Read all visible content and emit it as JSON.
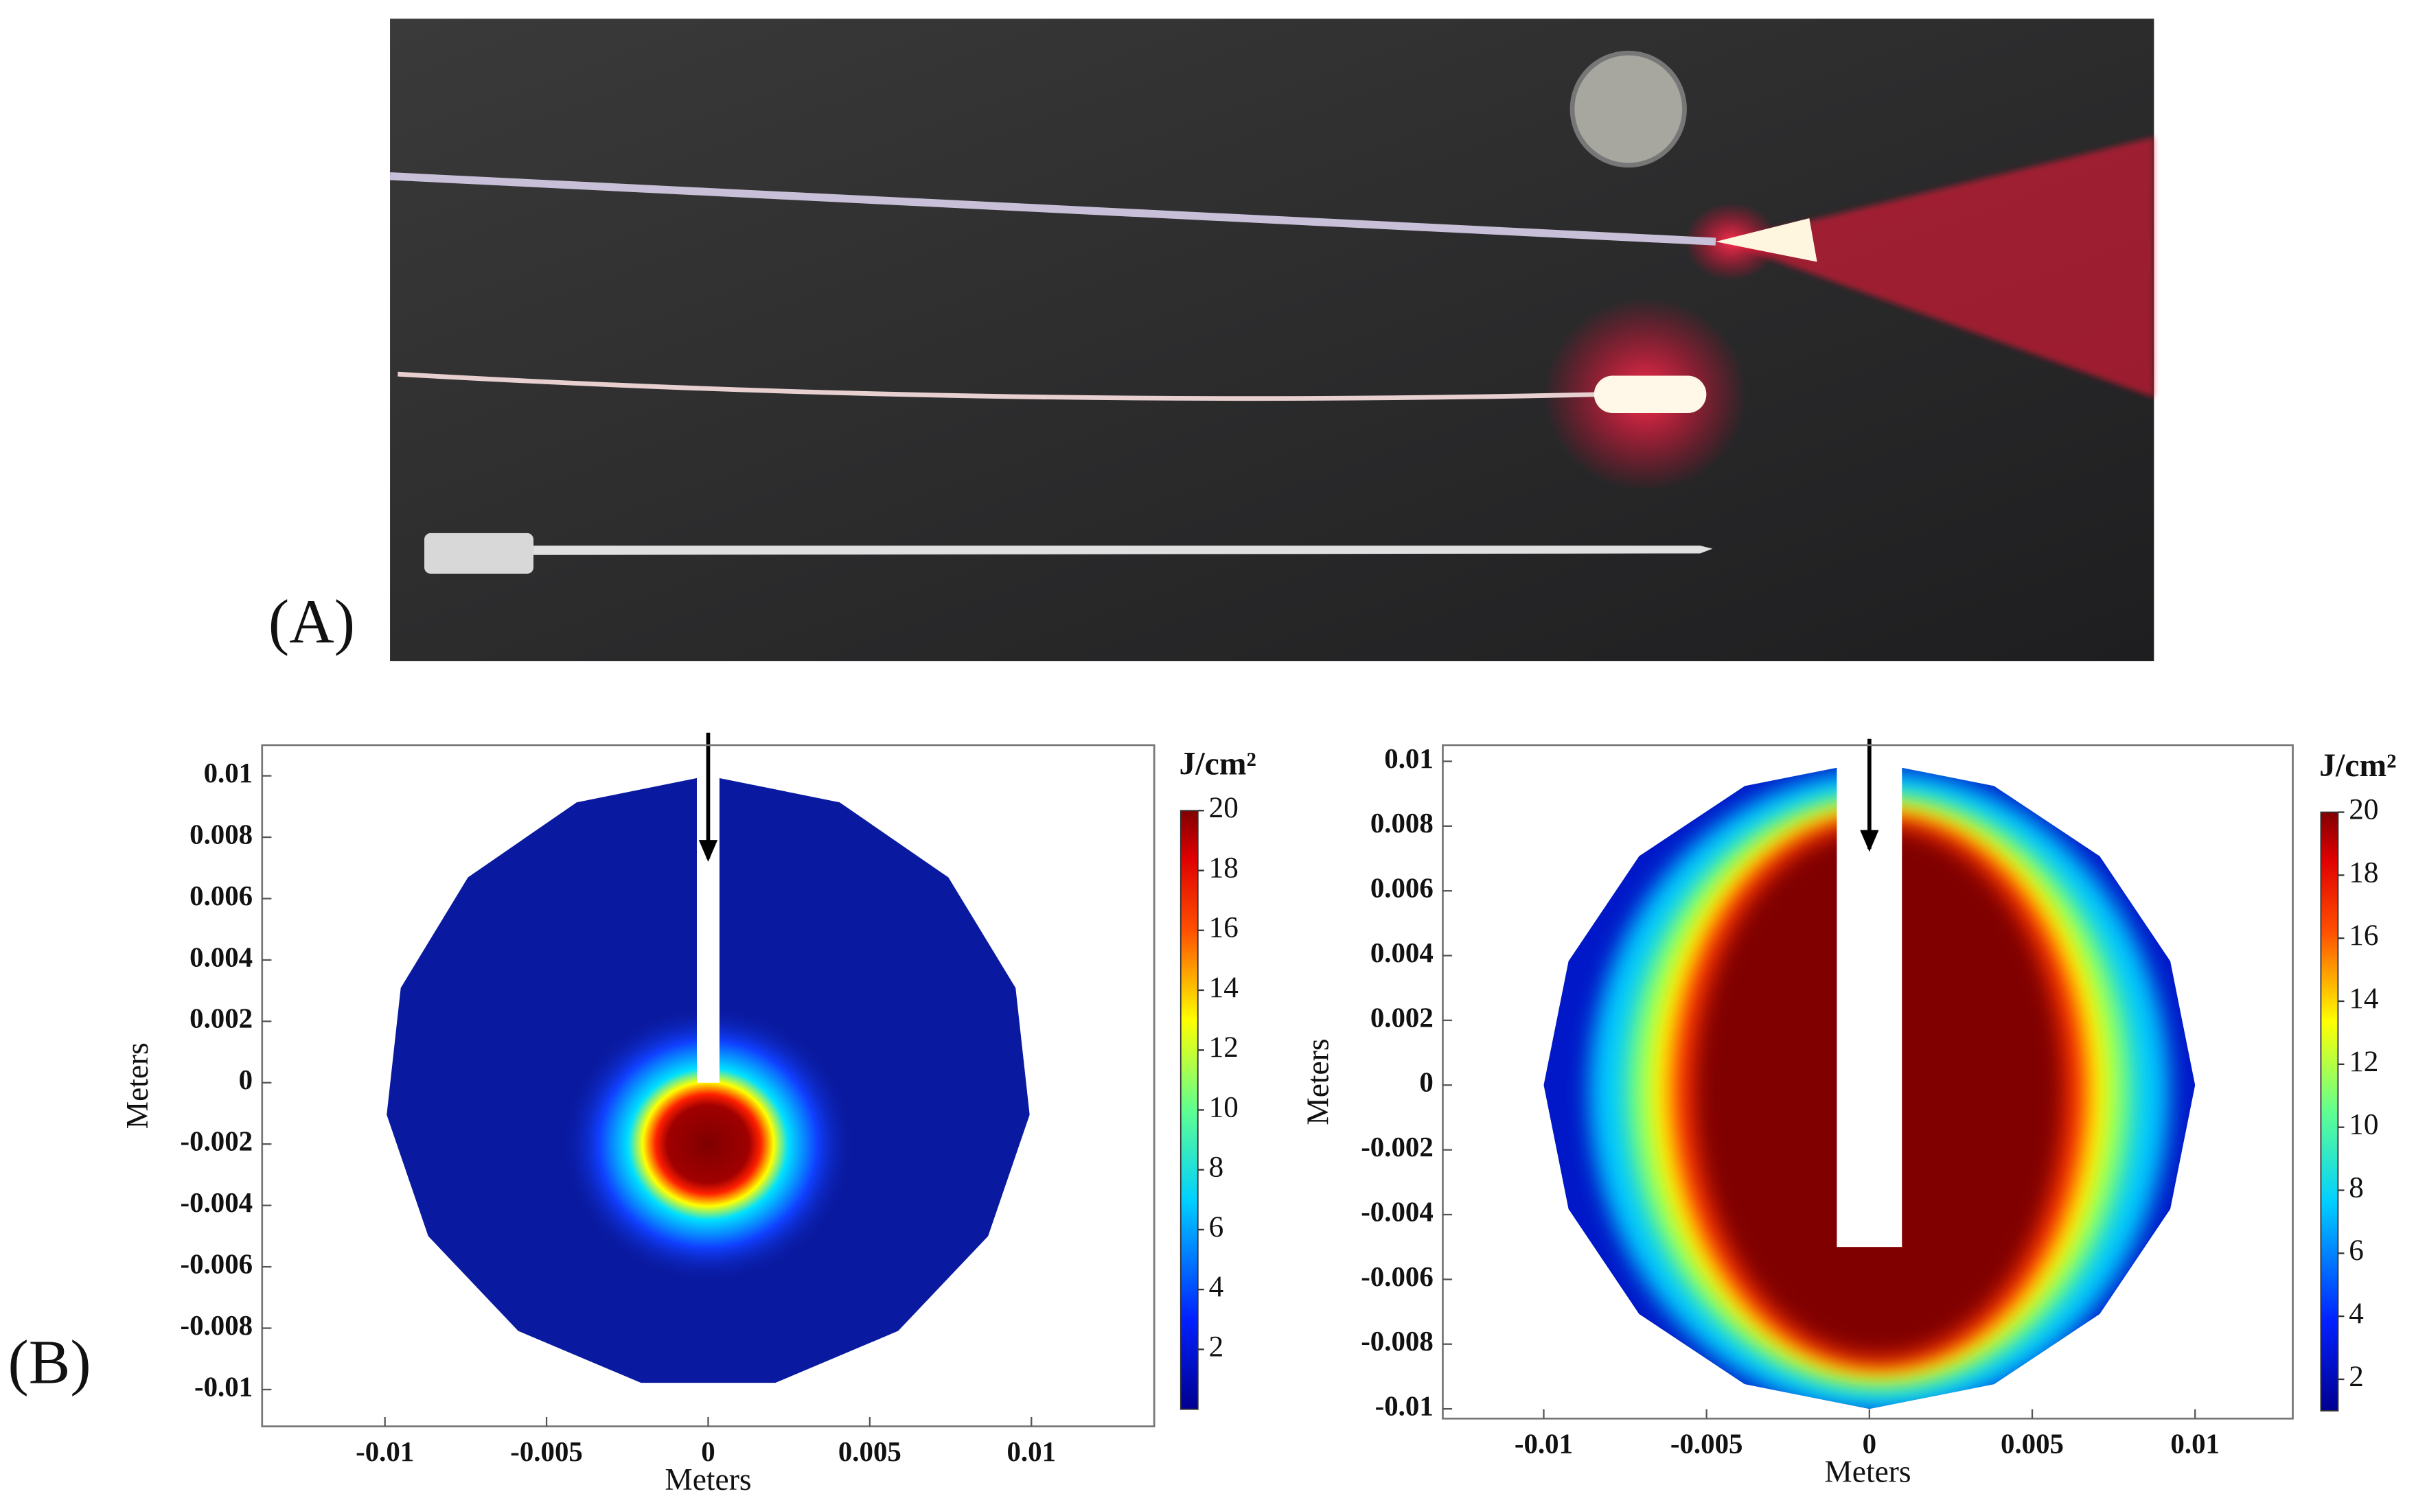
{
  "panel_labels": [
    "(A)",
    "(B)"
  ],
  "chart_data": [
    {
      "type": "heatmap",
      "xlabel": "Meters",
      "ylabel": "Meters",
      "colorbar_label": "J/cm²",
      "xlim": [
        -0.0138,
        0.0138
      ],
      "ylim": [
        -0.0112,
        0.011
      ],
      "xticks": [
        -0.01,
        -0.005,
        0,
        0.005,
        0.01
      ],
      "yticks": [
        0.01,
        0.008,
        0.006,
        0.004,
        0.002,
        0,
        -0.002,
        -0.004,
        -0.006,
        -0.008,
        -0.01
      ],
      "clim": [
        0,
        20
      ],
      "cticks": [
        2,
        4,
        6,
        8,
        10,
        12,
        14,
        16,
        18,
        20
      ]
    },
    {
      "type": "heatmap",
      "xlabel": "Meters",
      "ylabel": "Meters",
      "colorbar_label": "J/cm²",
      "xlim": [
        -0.0131,
        0.013
      ],
      "ylim": [
        -0.0103,
        0.0105
      ],
      "xticks": [
        -0.01,
        -0.005,
        0,
        0.005,
        0.01
      ],
      "yticks": [
        0.01,
        0.008,
        0.006,
        0.004,
        0.002,
        0,
        -0.002,
        -0.004,
        -0.006,
        -0.008,
        -0.01
      ],
      "clim": [
        1,
        20
      ],
      "cticks": [
        2,
        4,
        6,
        8,
        10,
        12,
        14,
        16,
        18,
        20
      ]
    }
  ]
}
